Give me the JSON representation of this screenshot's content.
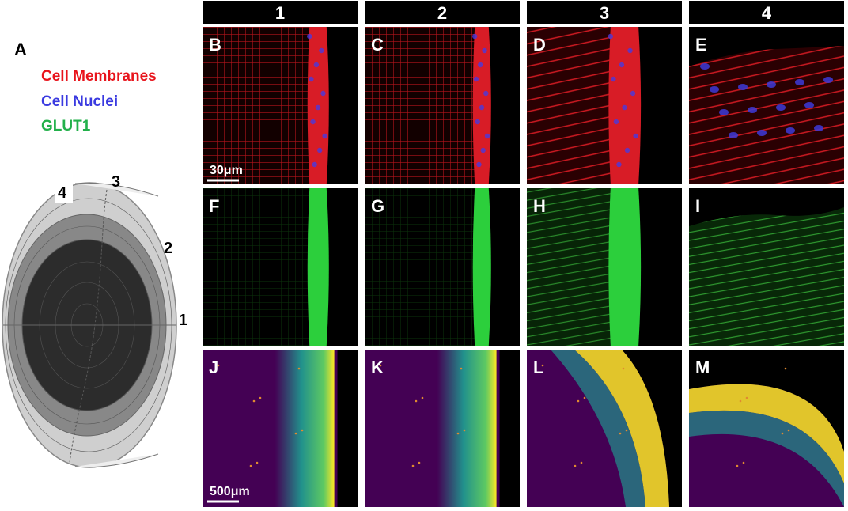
{
  "figure": {
    "panel_a_label": "A",
    "legend": [
      "Cell Membranes",
      "Cell Nuclei",
      "GLUT1"
    ],
    "diagram_labels": [
      "4",
      "3",
      "2",
      "1"
    ],
    "column_headers": [
      "1",
      "2",
      "3",
      "4"
    ],
    "panel_labels": [
      [
        "B",
        "C",
        "D",
        "E"
      ],
      [
        "F",
        "G",
        "H",
        "I"
      ],
      [
        "J",
        "K",
        "L",
        "M"
      ]
    ],
    "scale_bars": [
      "30μm",
      "500μm"
    ]
  }
}
